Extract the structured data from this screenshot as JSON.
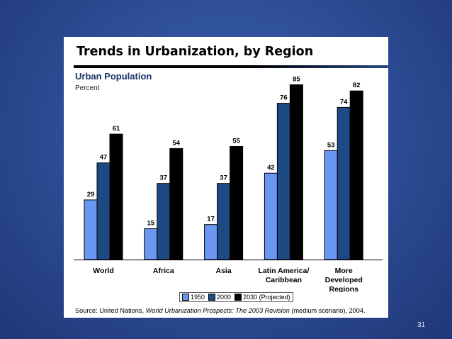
{
  "slide": {
    "page_number": "31"
  },
  "chart_data": {
    "type": "bar",
    "title": "Trends in Urbanization, by Region",
    "subtitle": "Urban Population",
    "ylabel": "Percent",
    "xlabel": "",
    "ylim": [
      0,
      90
    ],
    "grid": false,
    "legend_position": "bottom",
    "categories": [
      [
        "World"
      ],
      [
        "Africa"
      ],
      [
        "Asia"
      ],
      [
        "Latin America/",
        "Caribbean"
      ],
      [
        "More",
        "Developed",
        "Regions"
      ]
    ],
    "series": [
      {
        "name": "1950",
        "color": "#6b96f2",
        "values": [
          29,
          15,
          17,
          42,
          53
        ]
      },
      {
        "name": "2000",
        "color": "#1d4a85",
        "values": [
          47,
          37,
          37,
          76,
          74
        ]
      },
      {
        "name": "2030 (Projected)",
        "color": "#000000",
        "values": [
          61,
          54,
          55,
          85,
          82
        ]
      }
    ],
    "source": {
      "prefix": "Source: United Nations, ",
      "italic": "World Urbanization Prospects: The 2003 Revision",
      "suffix": " (medium scenario), 2004."
    }
  }
}
